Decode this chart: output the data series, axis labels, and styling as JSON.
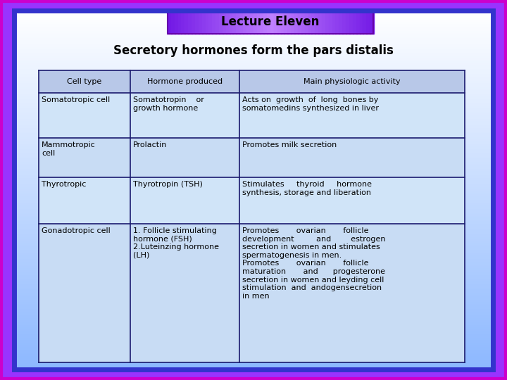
{
  "title": "Lecture Eleven",
  "subtitle": "Secretory hormones form the pars distalis",
  "header_row": [
    "Cell type",
    "Hormone produced",
    "Main physiologic activity"
  ],
  "rows": [
    [
      "Somatotropic cell",
      "Somatotropin    or\ngrowth hormone",
      "Acts on  growth  of  long  bones by\nsomatomedins synthesized in liver"
    ],
    [
      "Mammotropic\ncell",
      "Prolactin",
      "Promotes milk secretion"
    ],
    [
      "Thyrotropic",
      "Thyrotropin (TSH)",
      "Stimulates     thyroid     hormone\nsynthesis, storage and liberation"
    ],
    [
      "Gonadotropic cell",
      "1. Follicle stimulating\nhormone (FSH)\n2.Luteinzing hormone\n(LH)",
      "Promotes       ovarian       follicle\ndevelopment         and        estrogen\nsecretion in women and stimulates\nspermatogenesis in men.\nPromotes       ovarian       follicle\nmaturation       and      progesterone\nsecretion in women and leyding cell\nstimulation  and  andogensecretion\nin men"
    ]
  ],
  "border_color": "#1a1a6e",
  "font_size_table": 8.0,
  "font_size_title": 12,
  "font_size_subtitle": 12
}
